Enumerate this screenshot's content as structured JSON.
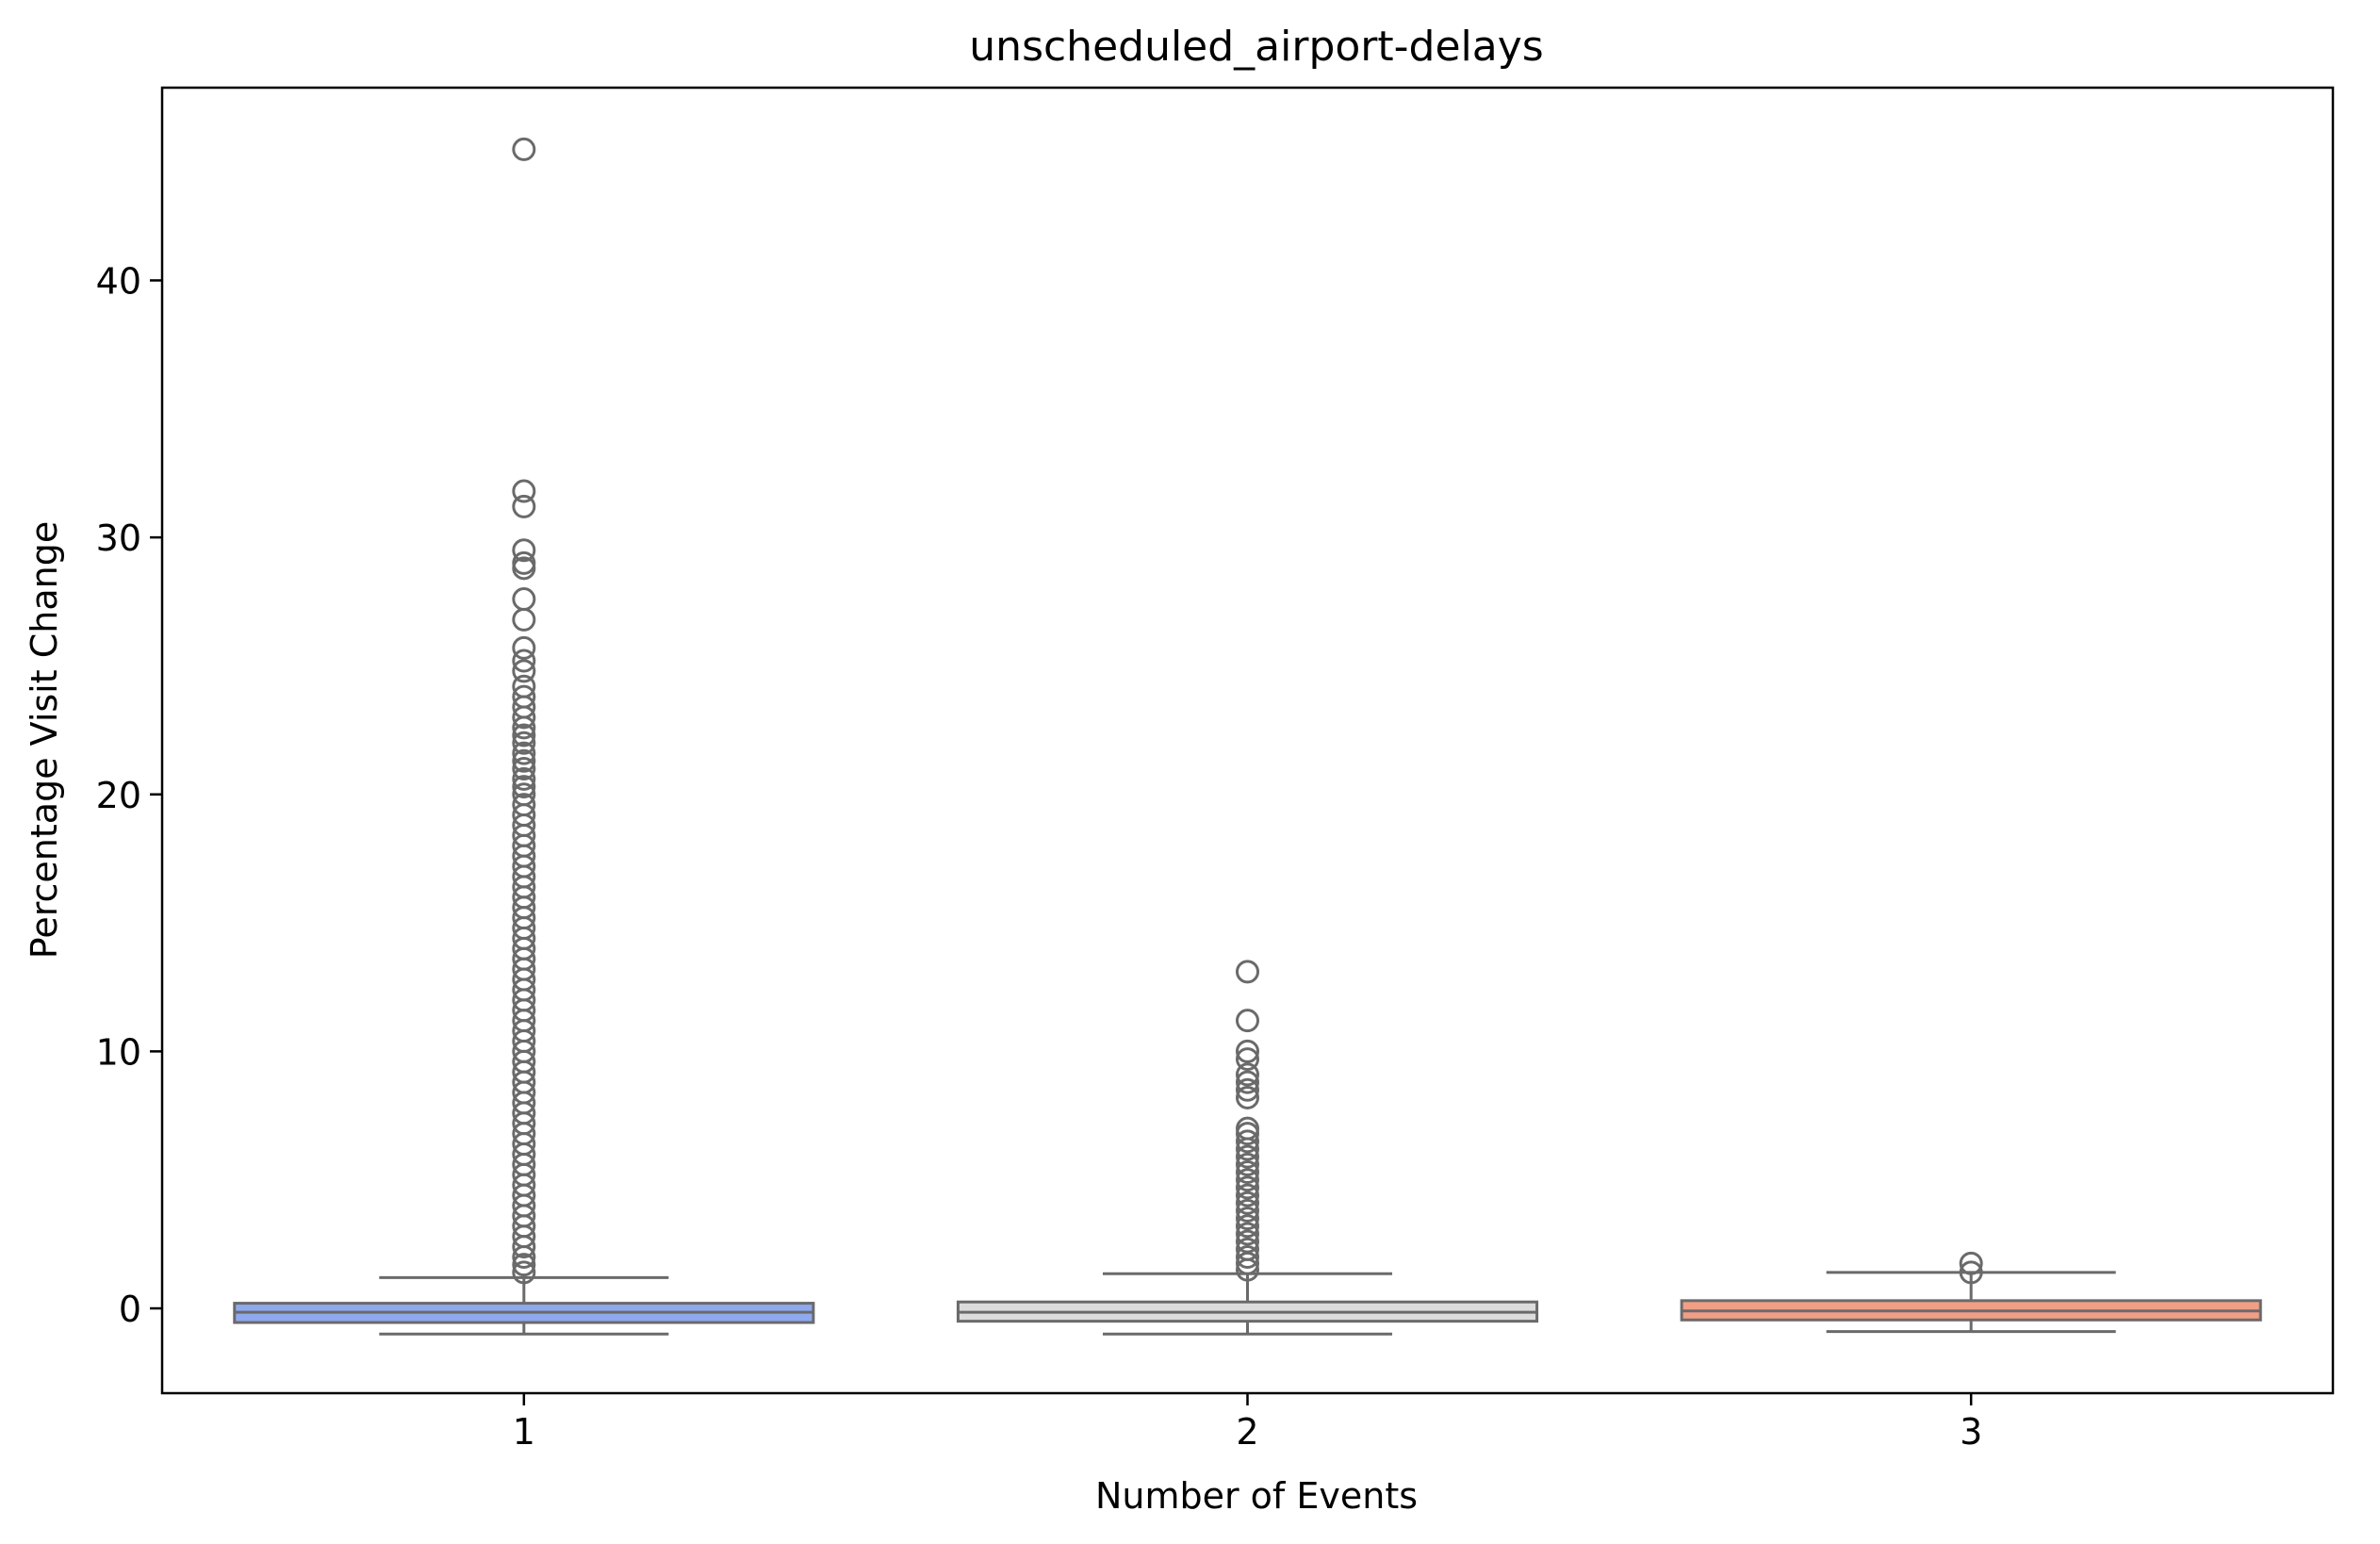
{
  "chart_data": {
    "type": "box",
    "title": "unscheduled_airport-delays",
    "xlabel": "Number of Events",
    "ylabel": "Percentage Visit Change",
    "categories": [
      "1",
      "2",
      "3"
    ],
    "ylim": [
      -3.3,
      47.5
    ],
    "yticks": [
      0,
      10,
      20,
      30,
      40
    ],
    "grid": false,
    "legend": "none",
    "colors": {
      "box_fills": [
        "#8fa9ee",
        "#dcdcdc",
        "#f19e86"
      ],
      "box_edge": "#6a6a6a",
      "frame": "#000000"
    },
    "boxes": [
      {
        "category": "1",
        "whisker_low": -1.0,
        "q1": -0.55,
        "median": -0.15,
        "q3": 0.2,
        "whisker_high": 1.2,
        "outliers": [
          45.1,
          31.8,
          31.2,
          29.5,
          29.0,
          28.8,
          27.6,
          26.8,
          25.7,
          25.2,
          24.8,
          24.2,
          23.8,
          23.4,
          23.0,
          22.6,
          22.3,
          22.0,
          21.6,
          21.3,
          21.0,
          20.6,
          20.3,
          20.0,
          19.6,
          19.2,
          18.8,
          18.4,
          18.0,
          17.6,
          17.2,
          16.8,
          16.4,
          16.0,
          15.6,
          15.2,
          14.8,
          14.4,
          14.0,
          13.6,
          13.2,
          12.8,
          12.4,
          12.0,
          11.6,
          11.2,
          10.8,
          10.4,
          10.0,
          9.6,
          9.2,
          8.8,
          8.4,
          8.0,
          7.6,
          7.2,
          6.8,
          6.4,
          6.0,
          5.6,
          5.2,
          4.8,
          4.4,
          4.0,
          3.6,
          3.2,
          2.8,
          2.4,
          2.0,
          1.7,
          1.4
        ]
      },
      {
        "category": "2",
        "whisker_low": -1.0,
        "q1": -0.5,
        "median": -0.15,
        "q3": 0.25,
        "whisker_high": 1.35,
        "outliers": [
          13.1,
          11.2,
          10.0,
          9.7,
          9.1,
          8.8,
          8.5,
          8.2,
          7.0,
          6.8,
          6.5,
          6.2,
          5.9,
          5.6,
          5.3,
          5.0,
          4.7,
          4.4,
          4.1,
          3.8,
          3.5,
          3.2,
          2.9,
          2.6,
          2.3,
          2.0,
          1.75,
          1.5
        ]
      },
      {
        "category": "3",
        "whisker_low": -0.9,
        "q1": -0.45,
        "median": -0.1,
        "q3": 0.3,
        "whisker_high": 1.4,
        "outliers": [
          1.75,
          1.4
        ]
      }
    ]
  }
}
